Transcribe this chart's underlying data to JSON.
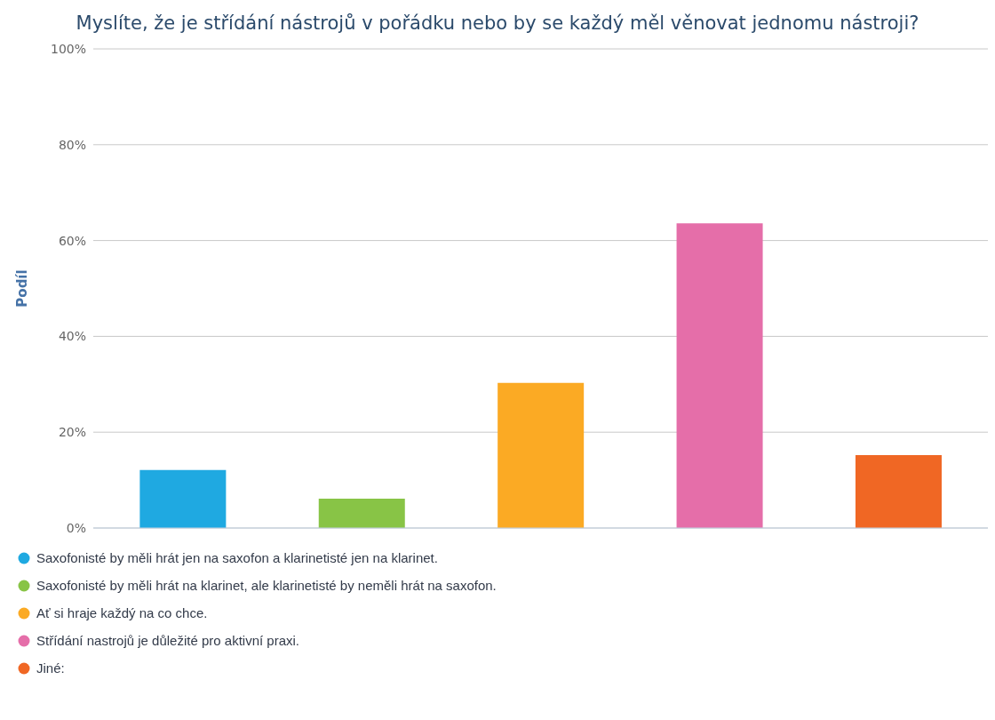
{
  "chart_data": {
    "type": "bar",
    "title": "Myslíte, že je střídání nástrojů v pořádku nebo by se každý měl věnovat jednomu nástroji?",
    "ylabel": "Podíl",
    "categories": [
      null,
      null,
      null,
      null,
      null
    ],
    "series": [
      {
        "name": "Saxofonisté by měli hrát jen na saxofon a klarinetisté jen na klarinet.",
        "color": "#1fa9e1",
        "values": [
          12.1,
          null,
          null,
          null,
          null
        ]
      },
      {
        "name": "Saxofonisté by měli hrát na klarinet, ale klarinetisté by neměli hrát na saxofon.",
        "color": "#88c446",
        "values": [
          null,
          6.1,
          null,
          null,
          null
        ]
      },
      {
        "name": "Ať si hraje každý na co chce.",
        "color": "#fbaa24",
        "values": [
          null,
          null,
          30.3,
          null,
          null
        ]
      },
      {
        "name": "Střídání nastrojů je důležité pro aktivní praxi.",
        "color": "#e56ea9",
        "values": [
          null,
          null,
          null,
          63.6,
          null
        ]
      },
      {
        "name": "Jiné:",
        "color": "#f06724",
        "values": [
          null,
          null,
          null,
          null,
          15.2
        ]
      }
    ],
    "ylim": [
      0,
      100
    ],
    "yticks": [
      {
        "value": 0,
        "label": "0%"
      },
      {
        "value": 20,
        "label": "20%"
      },
      {
        "value": 40,
        "label": "40%"
      },
      {
        "value": 60,
        "label": "60%"
      },
      {
        "value": 80,
        "label": "80%"
      },
      {
        "value": 100,
        "label": "100%"
      }
    ],
    "grid": "y",
    "legend": "bottom",
    "tick_labels": "y"
  }
}
